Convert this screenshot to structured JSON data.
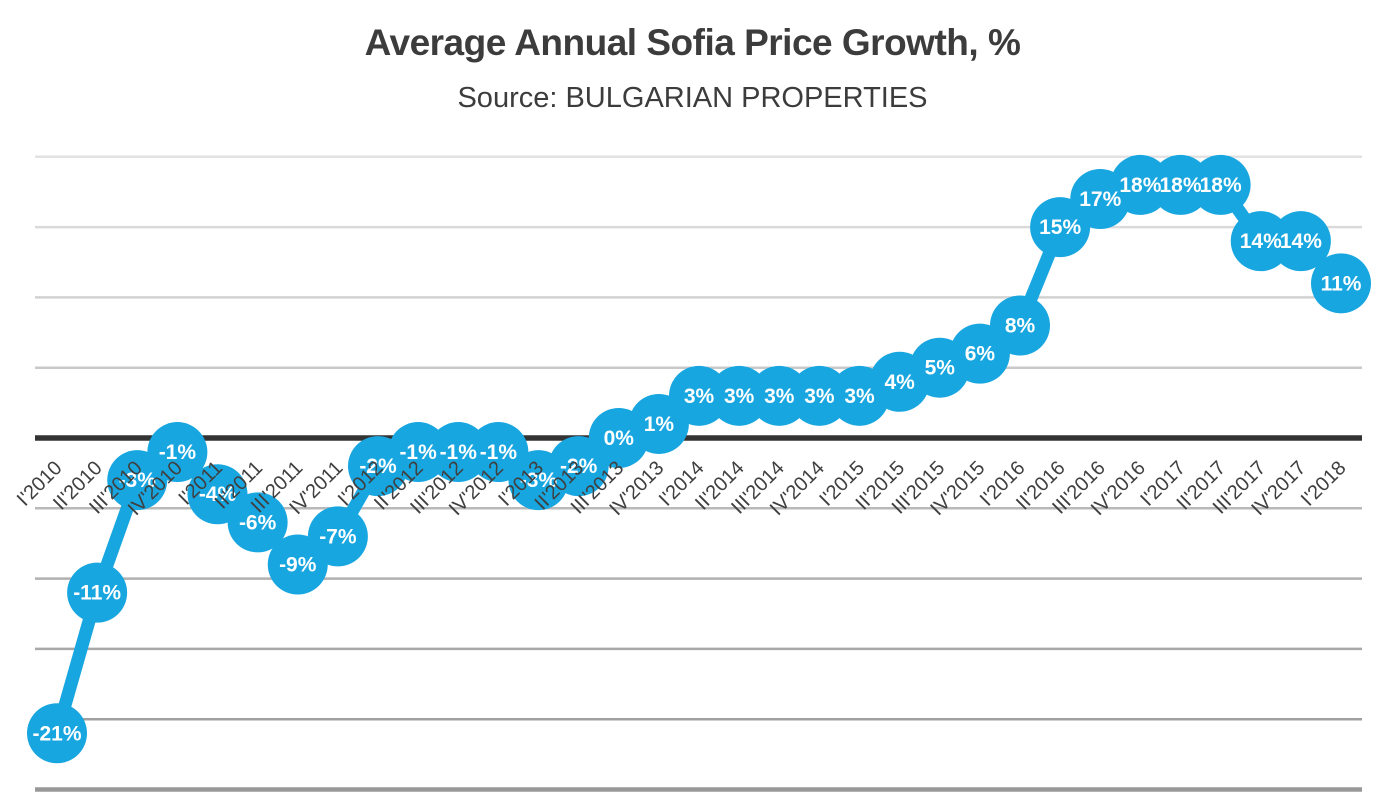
{
  "chart_data": {
    "type": "line",
    "title": "Average Annual Sofia Price Growth, %",
    "subtitle": "Source: BULGARIAN PROPERTIES",
    "series_name": "Average Annual Sofia Price Growth",
    "categories": [
      "I'2010",
      "II'2010",
      "III'2010",
      "IV'2010",
      "I'2011",
      "II'2011",
      "III'2011",
      "IV'2011",
      "I'2012",
      "II'2012",
      "III'2012",
      "IV'2012",
      "I'2013",
      "II'2013",
      "III'2013",
      "IV'2013",
      "I'2014",
      "II'2014",
      "III'2014",
      "IV'2014",
      "I'2015",
      "II'2015",
      "III'2015",
      "IV'2015",
      "I'2016",
      "II'2016",
      "III'2016",
      "IV'2016",
      "I'2017",
      "II'2017",
      "III'2017",
      "IV'2017",
      "I'2018"
    ],
    "values": [
      -21,
      -11,
      -3,
      -1,
      -4,
      -6,
      -9,
      -7,
      -2,
      -1,
      -1,
      -1,
      -3,
      -2,
      0,
      1,
      3,
      3,
      3,
      3,
      3,
      4,
      5,
      6,
      8,
      15,
      17,
      18,
      18,
      18,
      14,
      14,
      11
    ],
    "label_suffix": "%",
    "ylim": [
      -27,
      22
    ],
    "gridline_values": [
      20,
      15,
      10,
      5,
      0,
      -5,
      -10,
      -15,
      -20,
      -25
    ],
    "grid": "on",
    "legend": "none",
    "style": {
      "series_color": "#18A6E0",
      "data_label_color": "#FFFFFF",
      "title_color": "#3C3C3C",
      "subtitle_color": "#3C3C3C",
      "category_label_color": "#3F3F3F",
      "axis_zero_line_color": "#333333",
      "grid_color_light": "#E2E2E2",
      "grid_color_dark": "#989898",
      "background": "#FFFFFF"
    }
  }
}
